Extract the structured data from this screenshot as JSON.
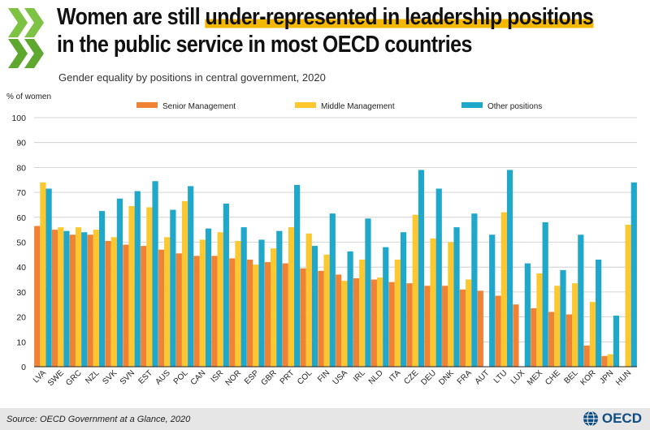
{
  "header": {
    "title_part1": "Women are still ",
    "title_highlight": "under-represented in leadership positions",
    "title_line2": "in the public service in most OECD countries",
    "subtitle": "Gender equality by positions in central government, 2020"
  },
  "footer": {
    "source": "Source: OECD Government at a Glance, 2020",
    "brand": "OECD"
  },
  "colors": {
    "senior": "#f08236",
    "middle": "#fdc82f",
    "other": "#1fa8c9",
    "gridline": "#c8c8c8",
    "footer_bg": "#e6e6e6",
    "logo": "#7dc242",
    "title_highlight": "#f5b800"
  },
  "chart_data": {
    "type": "bar",
    "ylabel": "% of women",
    "ylim": [
      0,
      100
    ],
    "yticks": [
      0,
      10,
      20,
      30,
      40,
      50,
      60,
      70,
      80,
      90,
      100
    ],
    "grid": true,
    "legend_position": "top",
    "categories": [
      "LVA",
      "SWE",
      "GRC",
      "NZL",
      "SVK",
      "SVN",
      "EST",
      "AUS",
      "POL",
      "CAN",
      "ISR",
      "NOR",
      "ESP",
      "GBR",
      "PRT",
      "COL",
      "FIN",
      "USA",
      "IRL",
      "NLD",
      "ITA",
      "CZE",
      "DEU",
      "DNK",
      "FRA",
      "AUT",
      "LTU",
      "LUX",
      "MEX",
      "CHE",
      "BEL",
      "KOR",
      "JPN",
      "HUN"
    ],
    "series": [
      {
        "name": "Senior Management",
        "values": [
          56.5,
          55,
          53,
          53,
          50.5,
          49,
          48.5,
          47,
          45.5,
          44.5,
          44.5,
          43.5,
          43,
          42,
          41.5,
          39.5,
          38.5,
          37,
          35.5,
          35,
          34,
          33.5,
          32.5,
          32.5,
          31,
          30.5,
          28.5,
          25,
          23.5,
          22,
          21,
          8.5,
          4.3,
          null
        ]
      },
      {
        "name": "Middle Management",
        "values": [
          74,
          56,
          56,
          55,
          52,
          64.5,
          64,
          52,
          66.5,
          51,
          54,
          50.5,
          41,
          47.5,
          56,
          53.5,
          45,
          34.5,
          43,
          35.8,
          43,
          61,
          51.5,
          50,
          35,
          null,
          62,
          null,
          37.5,
          32.5,
          33.5,
          26,
          5,
          57
        ]
      },
      {
        "name": "Other positions",
        "values": [
          71.5,
          54.5,
          54,
          62.5,
          67.5,
          70.5,
          74.5,
          63,
          72.5,
          55.5,
          65.5,
          56,
          51,
          54.5,
          73,
          48.5,
          61.5,
          46.3,
          59.5,
          48,
          54,
          79,
          71.5,
          56,
          61.5,
          53,
          79,
          41.5,
          58,
          38.8,
          53,
          43,
          20.5,
          74
        ]
      }
    ]
  }
}
